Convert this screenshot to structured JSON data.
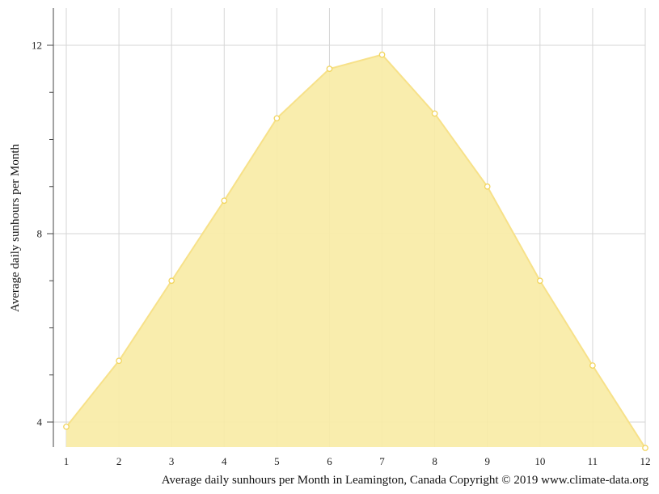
{
  "chart_data": {
    "type": "area",
    "title": "",
    "xlabel": "Average daily sunhours per Month in Leamington, Canada Copyright © 2019 www.climate-data.org",
    "ylabel": "Average daily sunhours per Month",
    "x": [
      1,
      2,
      3,
      4,
      5,
      6,
      7,
      8,
      9,
      10,
      11,
      12
    ],
    "x_tick_labels": [
      "1",
      "2",
      "3",
      "4",
      "5",
      "6",
      "7",
      "8",
      "9",
      "10",
      "11",
      "12"
    ],
    "y_tick_labels": [
      "4",
      "8",
      "12"
    ],
    "y_ticks": [
      4,
      8,
      12
    ],
    "y_minor_ticks": [
      5,
      6,
      7,
      9,
      10,
      11
    ],
    "xlim": [
      1,
      12
    ],
    "ylim": [
      3.45,
      12.8
    ],
    "grid": true,
    "series": [
      {
        "values": [
          3.9,
          5.3,
          7.0,
          8.7,
          10.45,
          11.5,
          11.8,
          10.55,
          9.0,
          7.0,
          5.2,
          3.45
        ]
      }
    ],
    "colors": {
      "fill": "#f9eca6",
      "line": "#f7e189",
      "point_fill": "#ffffff",
      "point_stroke": "#f2d55e",
      "grid": "#d6d6d6",
      "axis": "#444444"
    }
  }
}
